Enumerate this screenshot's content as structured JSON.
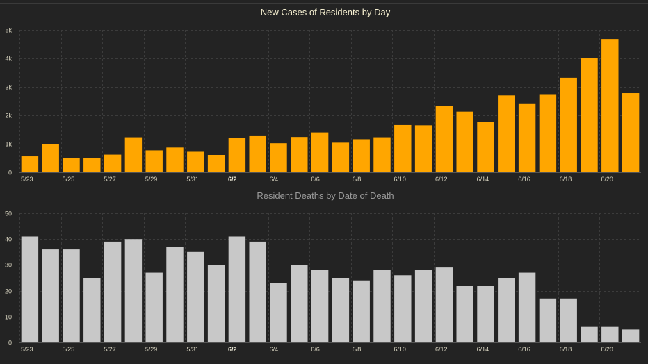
{
  "chart_data": [
    {
      "type": "bar",
      "title": "New Cases of Residents by Day",
      "xlabel": "",
      "ylabel": "",
      "color": "#FFA600",
      "title_color": "#F5EFD0",
      "categories": [
        "5/23",
        "5/24",
        "5/25",
        "5/26",
        "5/27",
        "5/28",
        "5/29",
        "5/30",
        "5/31",
        "6/1",
        "6/2",
        "6/3",
        "6/4",
        "6/5",
        "6/6",
        "6/7",
        "6/8",
        "6/9",
        "6/10",
        "6/11",
        "6/12",
        "6/13",
        "6/14",
        "6/15",
        "6/16",
        "6/17",
        "6/18",
        "6/19",
        "6/20",
        "6/21"
      ],
      "values": [
        560,
        990,
        510,
        490,
        620,
        1230,
        770,
        870,
        720,
        610,
        1210,
        1270,
        1020,
        1240,
        1400,
        1040,
        1160,
        1230,
        1660,
        1650,
        2320,
        2130,
        1770,
        2700,
        2420,
        2720,
        3320,
        4020,
        4680,
        2780
      ],
      "ylim": [
        0,
        5000
      ],
      "yticks": [
        0,
        1000,
        2000,
        3000,
        4000,
        5000
      ],
      "ytick_labels": [
        "0",
        "1k",
        "2k",
        "3k",
        "4k",
        "5k"
      ],
      "xtick_labels": [
        "5/23",
        "5/25",
        "5/27",
        "5/29",
        "5/31",
        "6/2",
        "6/4",
        "6/6",
        "6/8",
        "6/10",
        "6/12",
        "6/14",
        "6/16",
        "6/18",
        "6/20"
      ],
      "grid": true
    },
    {
      "type": "bar",
      "title": "Resident Deaths by Date of Death",
      "xlabel": "",
      "ylabel": "",
      "color": "#C8C8C8",
      "title_color": "#9A9A9A",
      "categories": [
        "5/23",
        "5/24",
        "5/25",
        "5/26",
        "5/27",
        "5/28",
        "5/29",
        "5/30",
        "5/31",
        "6/1",
        "6/2",
        "6/3",
        "6/4",
        "6/5",
        "6/6",
        "6/7",
        "6/8",
        "6/9",
        "6/10",
        "6/11",
        "6/12",
        "6/13",
        "6/14",
        "6/15",
        "6/16",
        "6/17",
        "6/18",
        "6/19",
        "6/20",
        "6/21"
      ],
      "values": [
        41,
        36,
        36,
        25,
        39,
        40,
        27,
        37,
        35,
        30,
        41,
        39,
        23,
        30,
        28,
        25,
        24,
        28,
        26,
        28,
        29,
        22,
        22,
        25,
        27,
        17,
        17,
        6,
        6,
        5
      ],
      "ylim": [
        0,
        50
      ],
      "yticks": [
        0,
        10,
        20,
        30,
        40,
        50
      ],
      "ytick_labels": [
        "0",
        "10",
        "20",
        "30",
        "40",
        "50"
      ],
      "xtick_labels": [
        "5/23",
        "5/25",
        "5/27",
        "5/29",
        "5/31",
        "6/2",
        "6/4",
        "6/6",
        "6/8",
        "6/10",
        "6/12",
        "6/14",
        "6/16",
        "6/18",
        "6/20"
      ],
      "grid": true
    }
  ]
}
